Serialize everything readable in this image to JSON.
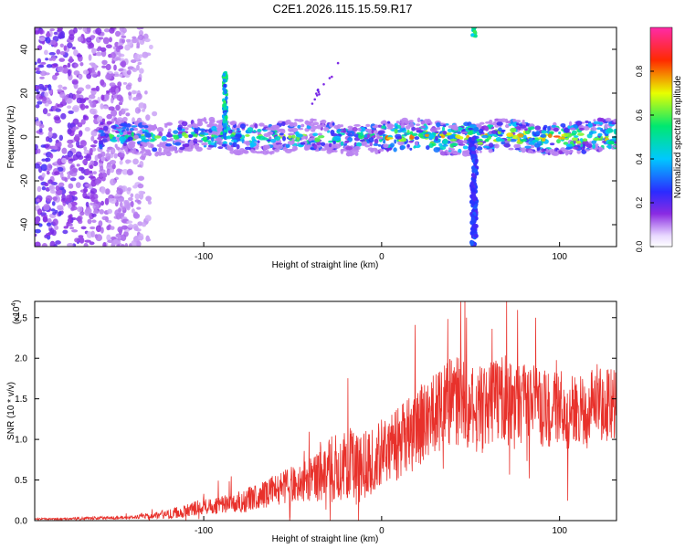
{
  "figure_title": "C2E1.2026.115.15.59.R17",
  "chart_data": [
    {
      "type": "heatmap",
      "title": "C2E1.2026.115.15.59.R17",
      "xlabel": "Height of straight line (km)",
      "ylabel": "Frequency (Hz)",
      "xlim": [
        -195,
        132
      ],
      "ylim": [
        -50,
        50
      ],
      "xticks": [
        -100,
        0,
        100
      ],
      "yticks": [
        -40,
        -20,
        0,
        20,
        40
      ],
      "xtick_labels": [
        "-100",
        "0",
        "100"
      ],
      "ytick_labels": [
        "-40",
        "-20",
        "0",
        "20",
        "40"
      ],
      "colorbar": {
        "label": "Normalized spectral amplitude",
        "range": [
          0,
          1
        ],
        "ticks": [
          0.0,
          0.2,
          0.4,
          0.6,
          0.8
        ],
        "tick_labels": [
          "0.0",
          "0.2",
          "0.4",
          "0.6",
          "0.8"
        ],
        "colormap": "rainbow (white-violet-blue-cyan-green-yellow-red-magenta)"
      },
      "features": [
        {
          "x": [
            -155,
            132
          ],
          "y_center": 0,
          "y_halfwidth": 5,
          "amplitude": [
            0.3,
            0.9
          ]
        },
        {
          "x": [
            -195,
            -140
          ],
          "y": [
            -50,
            50
          ],
          "amplitude": [
            0.1,
            0.3
          ]
        },
        {
          "x": -88,
          "y": [
            0,
            28
          ],
          "amplitude": 0.5
        },
        {
          "x": 52,
          "y": [
            -50,
            0
          ],
          "amplitude": 0.25
        },
        {
          "x": 52,
          "y": [
            46,
            50
          ],
          "amplitude": 0.5
        },
        {
          "x": [
            -40,
            -25
          ],
          "y": [
            15,
            35
          ],
          "amplitude": 0.15
        }
      ],
      "grid": false
    },
    {
      "type": "line",
      "xlabel": "Height of straight line (km)",
      "ylabel": "SNR (10 * v/v)",
      "y_multiplier_label": "(x10",
      "y_multiplier_exponent": "4",
      "xlim": [
        -195,
        132
      ],
      "ylim": [
        0,
        2.7
      ],
      "xticks": [
        -100,
        0,
        100
      ],
      "yticks": [
        0.0,
        0.5,
        1.0,
        1.5,
        2.0,
        2.5
      ],
      "xtick_labels": [
        "-100",
        "0",
        "100"
      ],
      "ytick_labels": [
        "0.0",
        "0.5",
        "1.0",
        "1.5",
        "2.0",
        "2.5"
      ],
      "line_color": "#e8312b",
      "grid": false,
      "series": [
        {
          "x": [
            -195,
            -180,
            -160,
            -140,
            -120,
            -110,
            -100,
            -90,
            -80,
            -70,
            -60,
            -50,
            -40,
            -35,
            -30,
            -25,
            -20,
            -15,
            -10,
            -5,
            0,
            5,
            10,
            15,
            20,
            25,
            30,
            35,
            40,
            45,
            50,
            55,
            60,
            65,
            70,
            75,
            80,
            85,
            90,
            95,
            100,
            105,
            110,
            115,
            120,
            125,
            130
          ],
          "values": [
            0.02,
            0.02,
            0.03,
            0.04,
            0.08,
            0.12,
            0.18,
            0.2,
            0.22,
            0.3,
            0.38,
            0.45,
            0.5,
            0.55,
            0.62,
            0.68,
            0.75,
            0.6,
            0.7,
            0.72,
            0.85,
            0.9,
            0.95,
            1.05,
            1.15,
            1.25,
            1.32,
            1.38,
            1.5,
            1.45,
            1.4,
            1.35,
            1.45,
            1.55,
            1.5,
            1.35,
            1.5,
            1.45,
            1.4,
            1.35,
            1.4,
            1.3,
            1.45,
            1.3,
            1.5,
            1.4,
            1.45
          ],
          "noise_amplitude": [
            0.01,
            0.01,
            0.02,
            0.02,
            0.06,
            0.08,
            0.1,
            0.12,
            0.14,
            0.16,
            0.2,
            0.22,
            0.28,
            0.35,
            0.4,
            0.45,
            0.5,
            0.45,
            0.4,
            0.4,
            0.4,
            0.42,
            0.45,
            0.48,
            0.5,
            0.5,
            0.52,
            0.55,
            0.55,
            0.55,
            0.5,
            0.55,
            0.55,
            0.55,
            0.55,
            0.5,
            0.5,
            0.5,
            0.5,
            0.45,
            0.5,
            0.45,
            0.45,
            0.45,
            0.45,
            0.45,
            0.45
          ]
        }
      ]
    }
  ]
}
